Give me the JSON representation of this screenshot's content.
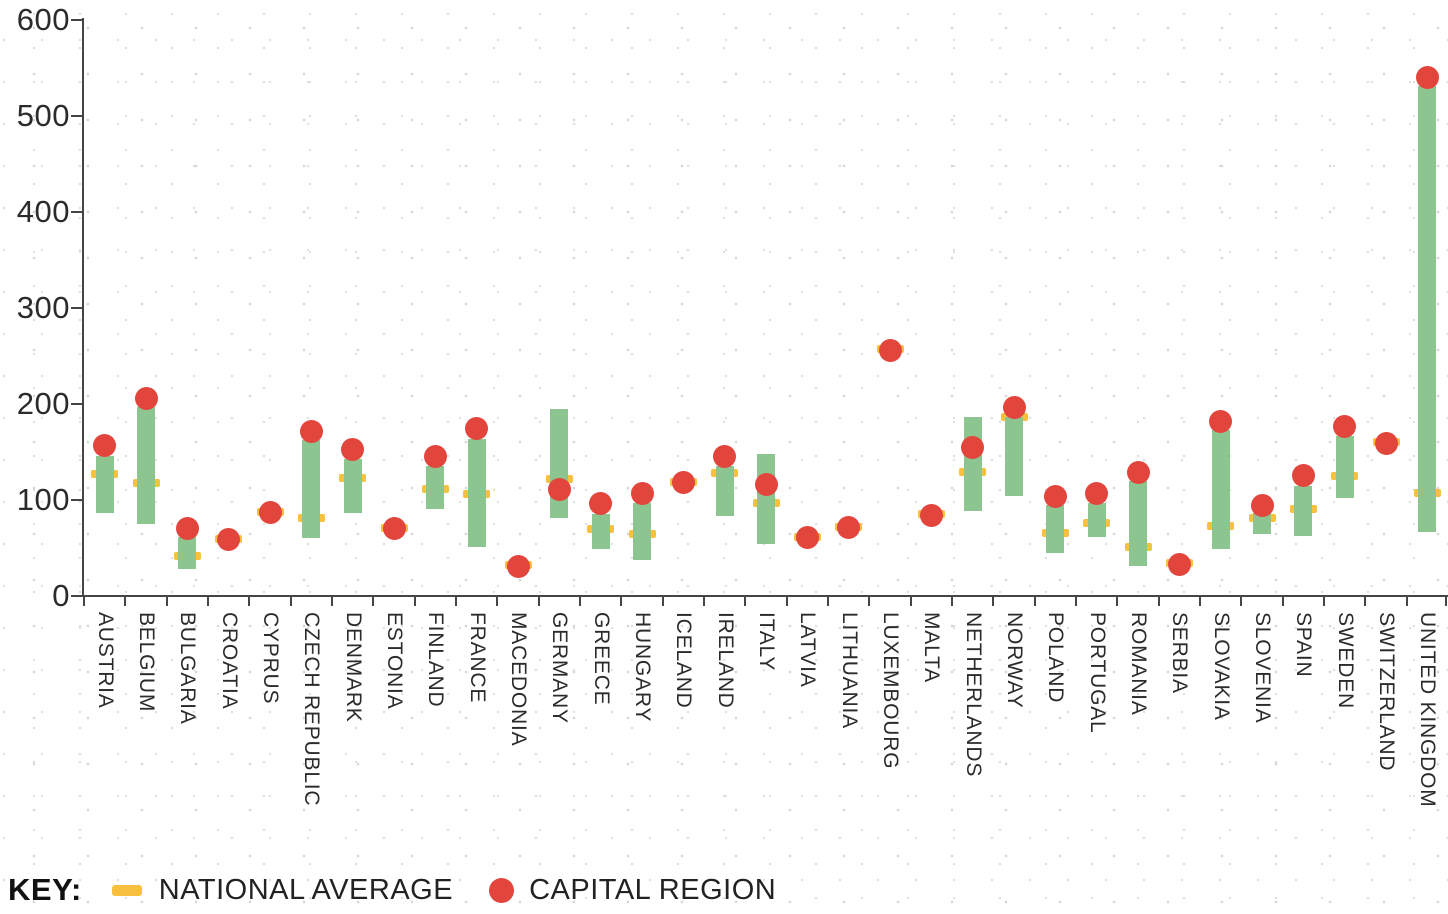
{
  "chart_data": {
    "type": "bar",
    "subtype": "floating-range-bar-with-markers",
    "title": "",
    "xlabel": "",
    "ylabel": "",
    "ylim": [
      0,
      600
    ],
    "yticks": [
      600,
      500,
      400,
      300,
      200,
      100,
      0
    ],
    "grid": false,
    "legend_position": "bottom-left",
    "key_label": "KEY:",
    "legend": [
      {
        "label": "NATIONAL AVERAGE",
        "marker": "dash"
      },
      {
        "label": "CAPITAL REGION",
        "marker": "dot"
      }
    ],
    "colors": {
      "range_bar": "#8CC590",
      "national_average": "#F7C13F",
      "capital_region": "#E2453C",
      "axis": "#454545",
      "text": "#2b2b2b",
      "speckle": "#d9d9d9"
    },
    "series": [
      {
        "country": "AUSTRIA",
        "range_low": 86,
        "range_high": 146,
        "national_average": 127,
        "capital_region": 157
      },
      {
        "country": "BELGIUM",
        "range_low": 75,
        "range_high": 197,
        "national_average": 118,
        "capital_region": 206
      },
      {
        "country": "BULGARIA",
        "range_low": 28,
        "range_high": 61,
        "national_average": 42,
        "capital_region": 70
      },
      {
        "country": "CROATIA",
        "range_low": null,
        "range_high": null,
        "national_average": 59,
        "capital_region": 59
      },
      {
        "country": "CYPRUS",
        "range_low": null,
        "range_high": null,
        "national_average": 88,
        "capital_region": 87
      },
      {
        "country": "CZECH REPUBLIC",
        "range_low": 60,
        "range_high": 162,
        "national_average": 81,
        "capital_region": 171
      },
      {
        "country": "DENMARK",
        "range_low": 86,
        "range_high": 143,
        "national_average": 123,
        "capital_region": 153
      },
      {
        "country": "ESTONIA",
        "range_low": null,
        "range_high": null,
        "national_average": 71,
        "capital_region": 70
      },
      {
        "country": "FINLAND",
        "range_low": 91,
        "range_high": 135,
        "national_average": 111,
        "capital_region": 145
      },
      {
        "country": "FRANCE",
        "range_low": 51,
        "range_high": 164,
        "national_average": 106,
        "capital_region": 174
      },
      {
        "country": "MACEDONIA",
        "range_low": null,
        "range_high": null,
        "national_average": 32,
        "capital_region": 31
      },
      {
        "country": "GERMANY",
        "range_low": 81,
        "range_high": 195,
        "national_average": 122,
        "capital_region": 111
      },
      {
        "country": "GREECE",
        "range_low": 49,
        "range_high": 85,
        "national_average": 70,
        "capital_region": 96
      },
      {
        "country": "HUNGARY",
        "range_low": 37,
        "range_high": 97,
        "national_average": 65,
        "capital_region": 107
      },
      {
        "country": "ICELAND",
        "range_low": null,
        "range_high": null,
        "national_average": 119,
        "capital_region": 118
      },
      {
        "country": "IRELAND",
        "range_low": 83,
        "range_high": 135,
        "national_average": 128,
        "capital_region": 145
      },
      {
        "country": "ITALY",
        "range_low": 54,
        "range_high": 148,
        "national_average": 97,
        "capital_region": 116
      },
      {
        "country": "LATVIA",
        "range_low": null,
        "range_high": null,
        "national_average": 61,
        "capital_region": 61
      },
      {
        "country": "LITHUANIA",
        "range_low": null,
        "range_high": null,
        "national_average": 72,
        "capital_region": 71
      },
      {
        "country": "LUXEMBOURG",
        "range_low": null,
        "range_high": null,
        "national_average": 257,
        "capital_region": 256
      },
      {
        "country": "MALTA",
        "range_low": null,
        "range_high": null,
        "national_average": 85,
        "capital_region": 84
      },
      {
        "country": "NETHERLANDS",
        "range_low": 89,
        "range_high": 186,
        "national_average": 129,
        "capital_region": 155
      },
      {
        "country": "NORWAY",
        "range_low": 104,
        "range_high": 186,
        "national_average": 186,
        "capital_region": 196
      },
      {
        "country": "POLAND",
        "range_low": 45,
        "range_high": 95,
        "national_average": 66,
        "capital_region": 104
      },
      {
        "country": "PORTUGAL",
        "range_low": 61,
        "range_high": 97,
        "national_average": 76,
        "capital_region": 107
      },
      {
        "country": "ROMANIA",
        "range_low": 31,
        "range_high": 120,
        "national_average": 51,
        "capital_region": 129
      },
      {
        "country": "SERBIA",
        "range_low": null,
        "range_high": null,
        "national_average": 34,
        "capital_region": 33
      },
      {
        "country": "SLOVAKIA",
        "range_low": 49,
        "range_high": 173,
        "national_average": 73,
        "capital_region": 182
      },
      {
        "country": "SLOVENIA",
        "range_low": 65,
        "range_high": 86,
        "national_average": 81,
        "capital_region": 94
      },
      {
        "country": "SPAIN",
        "range_low": 62,
        "range_high": 115,
        "national_average": 91,
        "capital_region": 126
      },
      {
        "country": "SWEDEN",
        "range_low": 102,
        "range_high": 167,
        "national_average": 125,
        "capital_region": 177
      },
      {
        "country": "SWITZERLAND",
        "range_low": null,
        "range_high": null,
        "national_average": 160,
        "capital_region": 159
      },
      {
        "country": "UNITED KINGDOM",
        "range_low": 67,
        "range_high": 531,
        "national_average": 107,
        "capital_region": 540
      }
    ]
  }
}
